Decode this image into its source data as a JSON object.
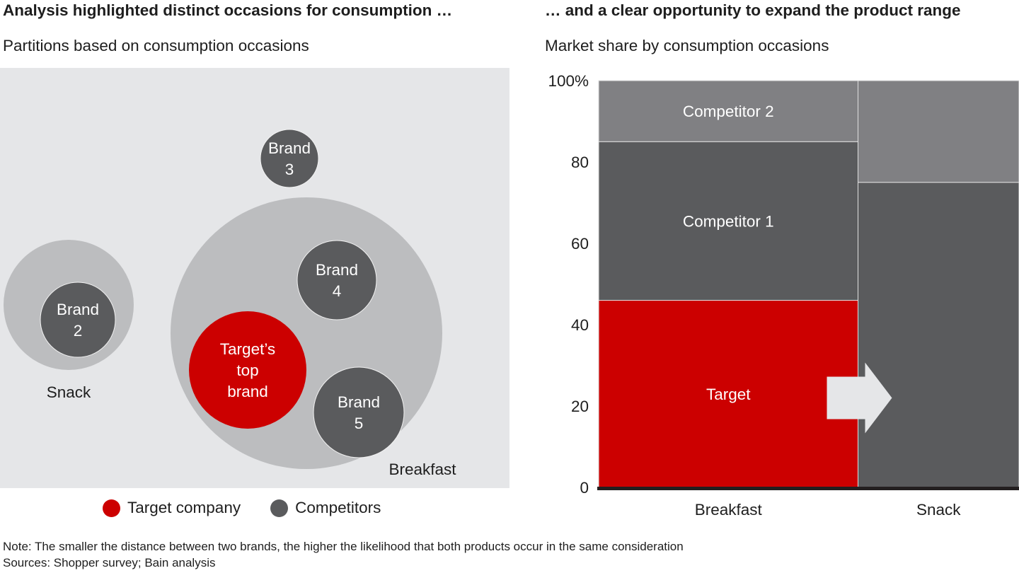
{
  "left": {
    "title": "Analysis highlighted distinct occasions for consumption …",
    "subtitle": "Partitions based on consumption occasions",
    "occasions": [
      {
        "id": "snack",
        "label": "Snack"
      },
      {
        "id": "breakfast",
        "label": "Breakfast"
      }
    ],
    "brands": [
      {
        "id": "brand-2",
        "lines": [
          "Brand",
          "2"
        ],
        "type": "competitor",
        "occasion": "snack"
      },
      {
        "id": "brand-3",
        "lines": [
          "Brand",
          "3"
        ],
        "type": "competitor",
        "occasion": "none"
      },
      {
        "id": "brand-4",
        "lines": [
          "Brand",
          "4"
        ],
        "type": "competitor",
        "occasion": "breakfast"
      },
      {
        "id": "target-top-brand",
        "lines": [
          "Target’s",
          "top",
          "brand"
        ],
        "type": "target",
        "occasion": "breakfast"
      },
      {
        "id": "brand-5",
        "lines": [
          "Brand",
          "5"
        ],
        "type": "competitor",
        "occasion": "breakfast"
      }
    ],
    "legend": [
      {
        "label": "Target company",
        "color": "#cc0000"
      },
      {
        "label": "Competitors",
        "color": "#5a5b5d"
      }
    ]
  },
  "right": {
    "title": "… and a clear opportunity to expand the product range",
    "subtitle": "Market share by consumption occasions"
  },
  "colors": {
    "target": "#cc0000",
    "competitor_dark": "#5a5b5d",
    "competitor_light": "#808083",
    "occasion_fill": "#bcbdbf",
    "panel_bg": "#e5e6e8",
    "arrow": "#e5e6e8"
  },
  "chart_data": {
    "type": "bar",
    "subtype": "stacked-100 (marimekko)",
    "title": "… and a clear opportunity to expand the product range",
    "subtitle": "Market share by consumption occasions",
    "categories": [
      "Breakfast",
      "Snack"
    ],
    "category_width_share": [
      0.617,
      0.383
    ],
    "series": [
      {
        "name": "Target",
        "values": [
          46,
          0
        ],
        "color": "#cc0000"
      },
      {
        "name": "Competitor 1",
        "values": [
          39,
          75
        ],
        "color": "#5a5b5d"
      },
      {
        "name": "Competitor 2",
        "values": [
          15,
          25
        ],
        "color": "#808083"
      }
    ],
    "segment_labels": [
      {
        "series": "Target",
        "category": "Breakfast",
        "text": "Target"
      },
      {
        "series": "Competitor 1",
        "category": "Breakfast",
        "text": "Competitor 1"
      },
      {
        "series": "Competitor 2",
        "category": "Breakfast",
        "text": "Competitor 2"
      }
    ],
    "yticks": [
      "0",
      "20",
      "40",
      "60",
      "80",
      "100%"
    ],
    "ytick_values": [
      0,
      20,
      40,
      60,
      80,
      100
    ],
    "ylim": [
      0,
      100
    ],
    "xlabel": "",
    "ylabel": "",
    "annotation": "arrow from Breakfast Target segment toward Snack column",
    "grid": false
  },
  "footer": {
    "note": "Note: The smaller the distance between two brands, the higher the likelihood that both products occur in the same consideration",
    "sources": "Sources: Shopper survey; Bain analysis"
  }
}
